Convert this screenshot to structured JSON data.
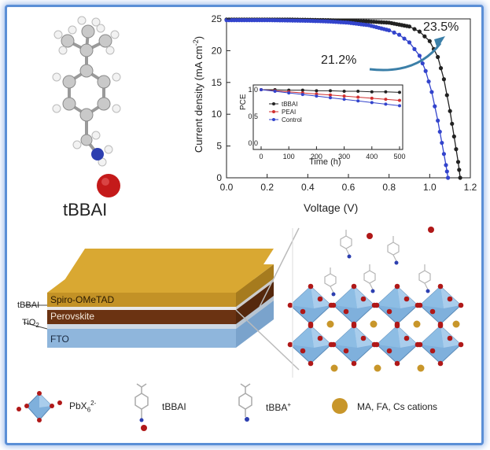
{
  "molecule_label": "tBBAI",
  "chart_data": [
    {
      "type": "line",
      "xlabel": "Voltage (V)",
      "ylabel_main": "Current density (mA cm",
      "ylabel_sup": "-2",
      "ylabel_close": ")",
      "xlim": [
        0.0,
        1.2
      ],
      "ylim": [
        0,
        25
      ],
      "x_ticks": [
        "0.0",
        "0.2",
        "0.4",
        "0.6",
        "0.8",
        "1.0",
        "1.2"
      ],
      "y_ticks": [
        "0",
        "5",
        "10",
        "15",
        "20",
        "25"
      ],
      "series": [
        {
          "color": "#222222",
          "x": [
            0.0,
            0.1,
            0.2,
            0.3,
            0.4,
            0.5,
            0.6,
            0.7,
            0.8,
            0.9,
            0.95,
            1.0,
            1.04,
            1.07,
            1.1,
            1.12,
            1.14,
            1.15
          ],
          "y": [
            24.9,
            24.9,
            24.9,
            24.9,
            24.85,
            24.8,
            24.7,
            24.6,
            24.4,
            23.8,
            23.0,
            21.5,
            19.0,
            15.5,
            10.5,
            6.5,
            2.5,
            0.0
          ]
        },
        {
          "color": "#3344cc",
          "x": [
            0.0,
            0.1,
            0.2,
            0.3,
            0.4,
            0.5,
            0.6,
            0.7,
            0.8,
            0.85,
            0.9,
            0.95,
            0.98,
            1.01,
            1.04,
            1.06,
            1.08,
            1.09
          ],
          "y": [
            24.8,
            24.8,
            24.8,
            24.75,
            24.7,
            24.6,
            24.4,
            24.0,
            23.2,
            22.5,
            21.3,
            19.2,
            16.8,
            13.5,
            9.0,
            5.5,
            2.0,
            0.0
          ]
        }
      ],
      "annotations": [
        "23.5%",
        "21.2%"
      ]
    },
    {
      "type": "line",
      "title_inset": true,
      "xlabel": "Time (h)",
      "ylabel": "PCE",
      "xlim": [
        0,
        500
      ],
      "ylim": [
        0.0,
        1.0
      ],
      "x_ticks": [
        "0",
        "100",
        "200",
        "300",
        "400",
        "500"
      ],
      "y_ticks": [
        "0.0",
        "0.5",
        "1.0"
      ],
      "legend_position": "left",
      "series": [
        {
          "name": "tBBAI",
          "color": "#222222",
          "x": [
            0,
            50,
            100,
            150,
            200,
            250,
            300,
            350,
            400,
            450,
            500
          ],
          "y": [
            1.0,
            1.0,
            0.99,
            0.99,
            0.98,
            0.98,
            0.97,
            0.97,
            0.96,
            0.96,
            0.95
          ]
        },
        {
          "name": "PEAI",
          "color": "#d03030",
          "x": [
            0,
            50,
            100,
            150,
            200,
            250,
            300,
            350,
            400,
            450,
            500
          ],
          "y": [
            1.0,
            0.98,
            0.96,
            0.94,
            0.92,
            0.9,
            0.88,
            0.86,
            0.84,
            0.82,
            0.8
          ]
        },
        {
          "name": "Control",
          "color": "#3344cc",
          "x": [
            0,
            50,
            100,
            150,
            200,
            250,
            300,
            350,
            400,
            450,
            500
          ],
          "y": [
            1.0,
            0.97,
            0.94,
            0.91,
            0.88,
            0.85,
            0.82,
            0.79,
            0.76,
            0.73,
            0.7
          ]
        }
      ]
    }
  ],
  "device_layers": {
    "spiro": "Spiro-OMeTAD",
    "tbbai": "tBBAI",
    "perovskite": "Perovskite",
    "tio2": "TiO",
    "tio2_sub": "2",
    "fto": "FTO"
  },
  "legend": {
    "pbx": "PbX",
    "pbx_sub": "6",
    "pbx_sup": "2-",
    "tbbai": "tBBAI",
    "tbba_cation": "tBBA",
    "tbba_sup": "+",
    "cations": "MA, FA, Cs cations"
  },
  "colors": {
    "frame": "#5b8fd6",
    "spiro": "#d9a832",
    "perovskite": "#6b3312",
    "fto": "#8fb6dc",
    "octahedron": "#7fb0dc",
    "halide": "#b01818",
    "cation": "#c8962a"
  }
}
